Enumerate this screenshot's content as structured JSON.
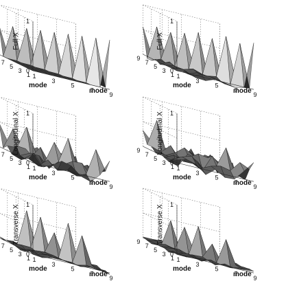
{
  "figure": {
    "panels": [
      {
        "ylabel": "Full X",
        "xlabel": "mode",
        "zlabel_left": "mode"
      },
      {
        "ylabel": "Full X",
        "xlabel": "mode",
        "zlabel_left": "mode"
      },
      {
        "ylabel": "Longitudinal X",
        "xlabel": "mode",
        "zlabel_left": "mode"
      },
      {
        "ylabel": "Longitudinal X",
        "xlabel": "mode",
        "zlabel_left": "mode"
      },
      {
        "ylabel": "Transverse X",
        "xlabel": "mode",
        "zlabel_left": "mode"
      },
      {
        "ylabel": "Transverse X",
        "xlabel": "mode",
        "zlabel_left": "mode"
      }
    ]
  },
  "chart_data": [
    {
      "type": "surface",
      "ylabel": "Full X",
      "xlabel": "mode",
      "xlabel2": "mode",
      "zlim": [
        0,
        1
      ],
      "z_ticks": [
        "0",
        "1"
      ],
      "x_ticks": [
        "1",
        "3",
        "5",
        "7",
        "9"
      ],
      "y_ticks": [
        "9",
        "7",
        "5",
        "3",
        "1"
      ],
      "pattern": "diagonal",
      "peak": 1.0,
      "noise": 0.0,
      "diag_amp": 1.0,
      "seed": 1
    },
    {
      "type": "surface",
      "ylabel": "Full X",
      "xlabel": "mode",
      "xlabel2": "mode",
      "zlim": [
        0,
        1
      ],
      "z_ticks": [
        "0",
        "1"
      ],
      "x_ticks": [
        "1",
        "3",
        "5",
        "7",
        "9"
      ],
      "y_ticks": [
        "9",
        "7",
        "5",
        "3",
        "1"
      ],
      "pattern": "diagonal",
      "peak": 1.0,
      "noise": 0.06,
      "diag_amp": 0.95,
      "seed": 2
    },
    {
      "type": "surface",
      "ylabel": "Longitudinal X",
      "xlabel": "mode",
      "xlabel2": "mode",
      "zlim": [
        0,
        1
      ],
      "z_ticks": [
        "0",
        "1"
      ],
      "x_ticks": [
        "1",
        "3",
        "5",
        "7",
        "9"
      ],
      "y_ticks": [
        "9",
        "7",
        "5",
        "3",
        "1"
      ],
      "pattern": "noisy",
      "peak": 0.75,
      "noise": 0.3,
      "diag_amp": 0.55,
      "seed": 3
    },
    {
      "type": "surface",
      "ylabel": "Longitudinal X",
      "xlabel": "mode",
      "xlabel2": "mode",
      "zlim": [
        0,
        1
      ],
      "z_ticks": [
        "0",
        "1"
      ],
      "x_ticks": [
        "1",
        "3",
        "5",
        "7",
        "9"
      ],
      "y_ticks": [
        "9",
        "7",
        "5",
        "3",
        "1"
      ],
      "pattern": "noisy",
      "peak": 0.65,
      "noise": 0.32,
      "diag_amp": 0.5,
      "seed": 4
    },
    {
      "type": "surface",
      "ylabel": "Transverse X",
      "xlabel": "mode",
      "xlabel2": "mode",
      "zlim": [
        0,
        1
      ],
      "z_ticks": [
        "0",
        "1"
      ],
      "x_ticks": [
        "1",
        "3",
        "5",
        "7",
        "9"
      ],
      "y_ticks": [
        "9",
        "7",
        "5",
        "3",
        "1"
      ],
      "pattern": "transverse",
      "peak": 0.85,
      "noise": 0.08,
      "diag_amp": 0.75,
      "seed": 5
    },
    {
      "type": "surface",
      "ylabel": "Transverse X",
      "xlabel": "mode",
      "xlabel2": "mode",
      "zlim": [
        0,
        1
      ],
      "z_ticks": [
        "0",
        "1"
      ],
      "x_ticks": [
        "1",
        "3",
        "5",
        "7",
        "9"
      ],
      "y_ticks": [
        "9",
        "7",
        "5",
        "3",
        "1"
      ],
      "pattern": "transverse",
      "peak": 0.75,
      "noise": 0.08,
      "diag_amp": 0.7,
      "seed": 6
    }
  ]
}
